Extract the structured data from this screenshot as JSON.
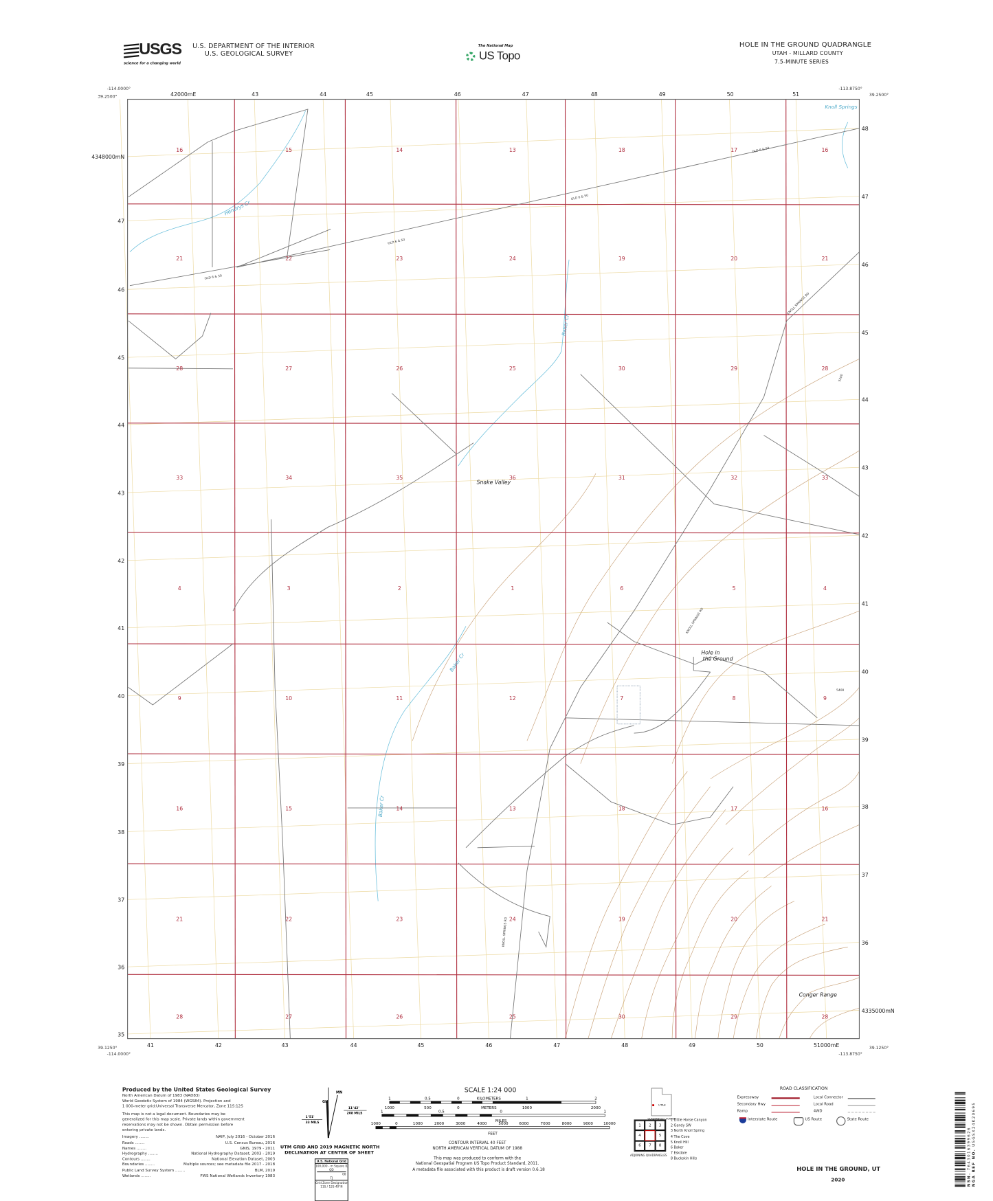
{
  "header": {
    "agency_logo": "USGS",
    "logo_tagline": "science for a changing world",
    "department": "U.S. DEPARTMENT OF THE INTERIOR",
    "survey": "U.S. GEOLOGICAL SURVEY",
    "national_map_tag": "The National Map",
    "us_topo": "US Topo",
    "quad_title": "HOLE IN THE GROUND QUADRANGLE",
    "state_county": "UTAH - MILLARD COUNTY",
    "series": "7.5-MINUTE SERIES"
  },
  "corners": {
    "nw_lon": "-114.0000°",
    "nw_lat": "39.2500°",
    "ne_lon": "-113.8750°",
    "ne_lat": "39.2500°",
    "sw_lon": "-114.0000°",
    "sw_lat": "39.1250°",
    "se_lon": "-113.8750°",
    "se_lat": "39.1250°"
  },
  "utm_ticks": {
    "top": [
      "42000mE",
      "43",
      "44",
      "45",
      "46",
      "47",
      "48",
      "49",
      "50",
      "51"
    ],
    "bottom": [
      "41",
      "42",
      "43",
      "44",
      "45",
      "46",
      "47",
      "48",
      "49",
      "50",
      "51000mE"
    ],
    "left": [
      "4348000mN",
      "47",
      "46",
      "45",
      "44",
      "43",
      "42",
      "41",
      "40",
      "39",
      "38",
      "37",
      "36",
      "35"
    ],
    "right": [
      "48",
      "47",
      "46",
      "45",
      "44",
      "43",
      "42",
      "41",
      "40",
      "39",
      "38",
      "37",
      "36",
      "4335000mN"
    ]
  },
  "sections": [
    [
      "16",
      "15",
      "14",
      "13",
      "18",
      "17",
      "16"
    ],
    [
      "21",
      "22",
      "23",
      "24",
      "19",
      "20",
      "21"
    ],
    [
      "28",
      "27",
      "26",
      "25",
      "30",
      "29",
      "28"
    ],
    [
      "33",
      "34",
      "35",
      "36",
      "31",
      "32",
      "33"
    ],
    [
      "4",
      "3",
      "2",
      "1",
      "6",
      "5",
      "4"
    ],
    [
      "9",
      "10",
      "11",
      "12",
      "7",
      "8",
      "9"
    ],
    [
      "16",
      "15",
      "14",
      "13",
      "18",
      "17",
      "16"
    ],
    [
      "21",
      "22",
      "23",
      "24",
      "19",
      "20",
      "21"
    ],
    [
      "28",
      "27",
      "26",
      "25",
      "30",
      "29",
      "28"
    ]
  ],
  "map_labels": {
    "knoll_springs": "Knoll Springs",
    "hendrys_cr": "Hendrys Cr",
    "snake_valley": "Snake Valley",
    "hole_line1": "Hole in",
    "hole_line2": "the Ground",
    "baker_cr": "Baker Cr",
    "conger_range": "Conger Range",
    "old_6_50": "OLD 6 & 50",
    "knoll_springs_rd": "KNOLL SPRINGS RD",
    "contour_5200": "5200",
    "contour_5400": "5400"
  },
  "colors": {
    "plss": "#b03040",
    "utm_grid": "#e8d090",
    "road": "#777777",
    "water": "#6cc0dc",
    "contour": "#c9a27a"
  },
  "credits": {
    "title": "Produced by the United States Geological Survey",
    "datum": [
      "North American Datum of 1983 (NAD83)",
      "World Geodetic System of 1984 (WGS84).  Projection and",
      "1 000-meter grid:Universal Transverse Mercator, Zone 11S:12S"
    ],
    "disclaimer": [
      "This map is not a legal document. Boundaries may be",
      "generalized for this map scale. Private lands within government",
      "reservations may not be shown. Obtain permission before",
      "entering private lands."
    ],
    "sources": [
      {
        "name": "Imagery",
        "value": "NAIP, July 2016 - October 2016"
      },
      {
        "name": "Roads",
        "value": "U.S. Census Bureau, 2016"
      },
      {
        "name": "Names",
        "value": "GNIS, 1979 - 2011"
      },
      {
        "name": "Hydrography",
        "value": "National Hydrography Dataset, 2003 - 2019"
      },
      {
        "name": "Contours",
        "value": "National Elevation Dataset, 2003"
      },
      {
        "name": "Boundaries",
        "value": "Multiple sources; see metadata file 2017 - 2018"
      },
      {
        "name": "Public Land Survey System",
        "value": "BLM, 2019"
      },
      {
        "name": "Wetlands",
        "value": "FWS National Wetlands Inventory 1983"
      }
    ]
  },
  "declination": {
    "mn": "MN",
    "gn": "GN",
    "grid_angle": "1°51'",
    "grid_mils": "33 MILS",
    "mag_angle": "11°42'",
    "mag_mils": "208 MILS",
    "caption1": "UTM GRID AND 2019 MAGNETIC NORTH",
    "caption2": "DECLINATION AT CENTER OF SHEET"
  },
  "national_grid": {
    "title": "U.S. National Grid",
    "sq_label": "100,000 - m Square ID",
    "sq1": "QD",
    "line_val": "00",
    "sq2": "TJ",
    "gzd_label": "Grid Zone Designation",
    "z1": "11S",
    "z2": "12S",
    "lat": "40°N"
  },
  "scale": {
    "title": "SCALE 1:24 000",
    "km_labels": [
      "1",
      "0.5",
      "0",
      "1",
      "2"
    ],
    "km_unit": "KILOMETERS",
    "m_labels": [
      "1000",
      "500",
      "0",
      "1000",
      "2000"
    ],
    "m_unit": "METERS",
    "mi_labels": [
      "1",
      "0.5",
      "0",
      "1"
    ],
    "mi_unit": "MILES",
    "ft_labels": [
      "1000",
      "0",
      "1000",
      "2000",
      "3000",
      "4000",
      "5000",
      "6000",
      "7000",
      "8000",
      "9000",
      "10000"
    ],
    "ft_unit": "FEET",
    "contour1": "CONTOUR INTERVAL 40 FEET",
    "contour2": "NORTH AMERICAN VERTICAL DATUM OF 1988",
    "conform1": "This map was produced to conform with the",
    "conform2": "National Geospatial Program US Topo Product Standard, 2011.",
    "conform3": "A metadata file associated with this product is draft version 0.6.18"
  },
  "location": {
    "state": "UTAH",
    "caption": "QUADRANGLE LOCATION"
  },
  "adjoining": {
    "caption": "ADJOINING QUADRANGLES",
    "cells": [
      "1",
      "2",
      "3",
      "4",
      "",
      "5",
      "6",
      "7",
      "8"
    ],
    "list": [
      "1 Little Horse Canyon",
      "2 Gandy SW",
      "3 North Knoll Spring",
      "4 The Cove",
      "5 Knoll Hill",
      "6 Baker",
      "7 Eskdale",
      "8 Buckskin Hills"
    ]
  },
  "roads": {
    "title": "ROAD CLASSIFICATION",
    "expressway": "Expressway",
    "secondary": "Secondary Hwy",
    "ramp": "Ramp",
    "local_connector": "Local Connector",
    "local_road": "Local Road",
    "fourwd": "4WD",
    "interstate": "Interstate Route",
    "us_route": "US Route",
    "state_route": "State Route"
  },
  "footer": {
    "name": "HOLE IN THE GROUND,  UT",
    "year": "2020"
  },
  "barcode": {
    "nsn_label": "NSN.",
    "nsn": "7643016399626",
    "nga_label": "NGA REF NO.",
    "nga": "USGSX24K20695"
  }
}
